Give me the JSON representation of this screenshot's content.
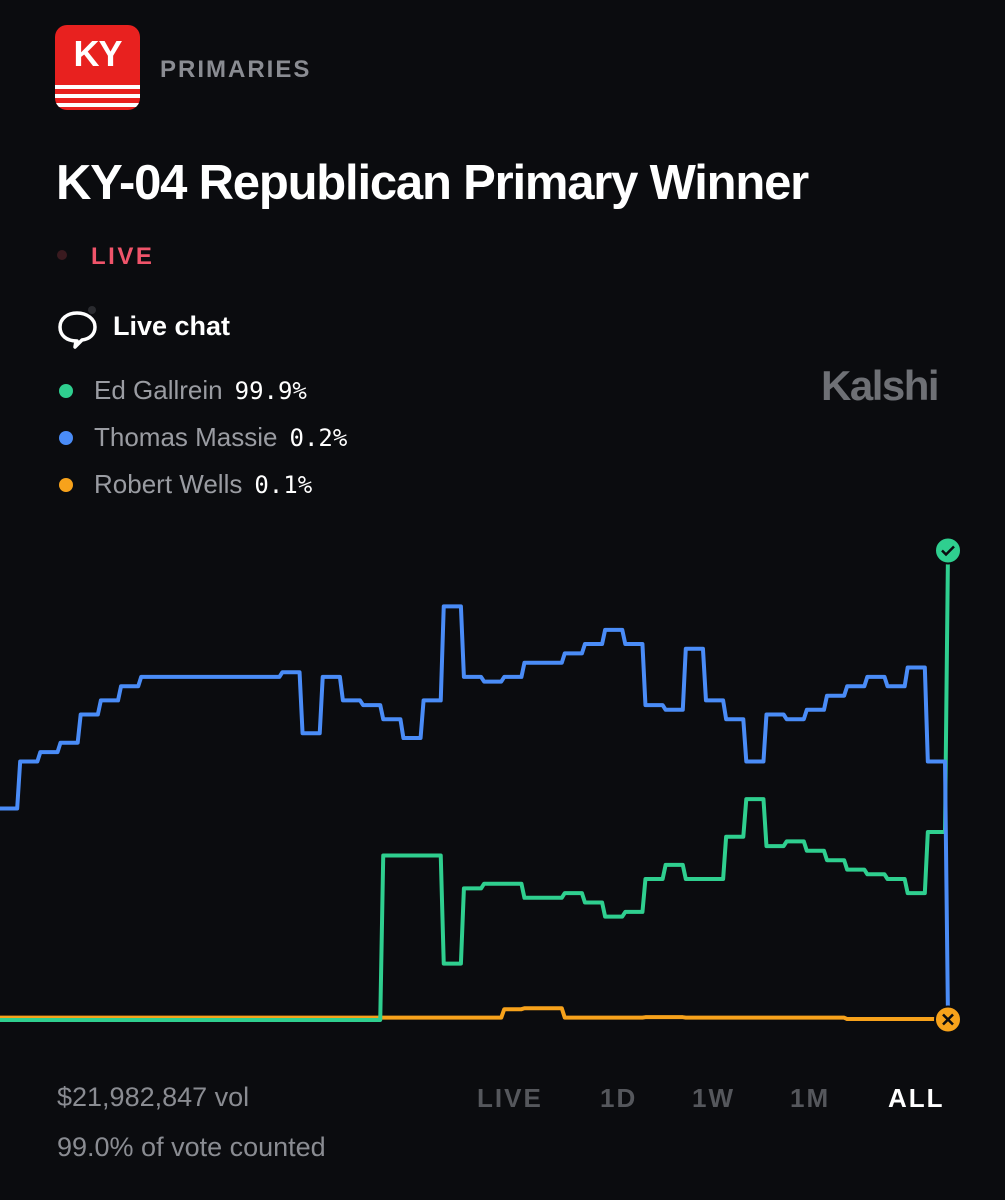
{
  "header": {
    "badge": "KY",
    "category": "PRIMARIES"
  },
  "title": "KY-04 Republican Primary Winner",
  "status": "LIVE",
  "chat": "Live chat",
  "brand": "Kalshi",
  "legend": [
    {
      "name": "Ed Gallrein",
      "value": "99.9%"
    },
    {
      "name": "Thomas Massie",
      "value": "0.2%"
    },
    {
      "name": "Robert Wells",
      "value": "0.1%"
    }
  ],
  "chart_data": {
    "type": "line",
    "ylim": [
      0,
      100
    ],
    "grid": false,
    "series": [
      {
        "name": "Ed Gallrein",
        "color": "#2fcf8f",
        "values": [
          0,
          0,
          0,
          0,
          0,
          0,
          0,
          0,
          0,
          0,
          0,
          0,
          0,
          0,
          0,
          0,
          0,
          0,
          0,
          35,
          35,
          35,
          12,
          28,
          29,
          29,
          26,
          26,
          27,
          25,
          22,
          23,
          30,
          33,
          30,
          30,
          39,
          47,
          37,
          38,
          36,
          34,
          32,
          31,
          30,
          27,
          40,
          99.9
        ]
      },
      {
        "name": "Thomas Massie",
        "color": "#4a8cf7",
        "values": [
          45,
          55,
          57,
          59,
          65,
          68,
          71,
          73,
          73,
          73,
          73,
          73,
          73,
          73,
          74,
          61,
          73,
          68,
          67,
          64,
          60,
          68,
          88,
          73,
          72,
          73,
          76,
          76,
          78,
          80,
          83,
          80,
          67,
          66,
          79,
          68,
          64,
          55,
          65,
          64,
          66,
          69,
          71,
          73,
          71,
          75,
          55,
          0.2
        ]
      },
      {
        "name": "Robert Wells",
        "color": "#f7a21b",
        "values": [
          0.5,
          0.5,
          0.5,
          0.5,
          0.5,
          0.5,
          0.5,
          0.5,
          0.5,
          0.5,
          0.5,
          0.5,
          0.5,
          0.5,
          0.5,
          0.5,
          0.5,
          0.5,
          0.5,
          0.5,
          0.5,
          0.5,
          0.5,
          0.5,
          0.5,
          2.3,
          2.5,
          2.5,
          0.5,
          0.5,
          0.5,
          0.5,
          0.6,
          0.6,
          0.5,
          0.5,
          0.5,
          0.5,
          0.5,
          0.5,
          0.5,
          0.5,
          0.2,
          0.2,
          0.2,
          0.2,
          0.2,
          0.1
        ]
      }
    ]
  },
  "footer": {
    "volume": "$21,982,847 vol",
    "counted": "99.0% of vote counted"
  },
  "ranges": [
    "LIVE",
    "1D",
    "1W",
    "1M",
    "ALL"
  ],
  "selected_range": "ALL"
}
